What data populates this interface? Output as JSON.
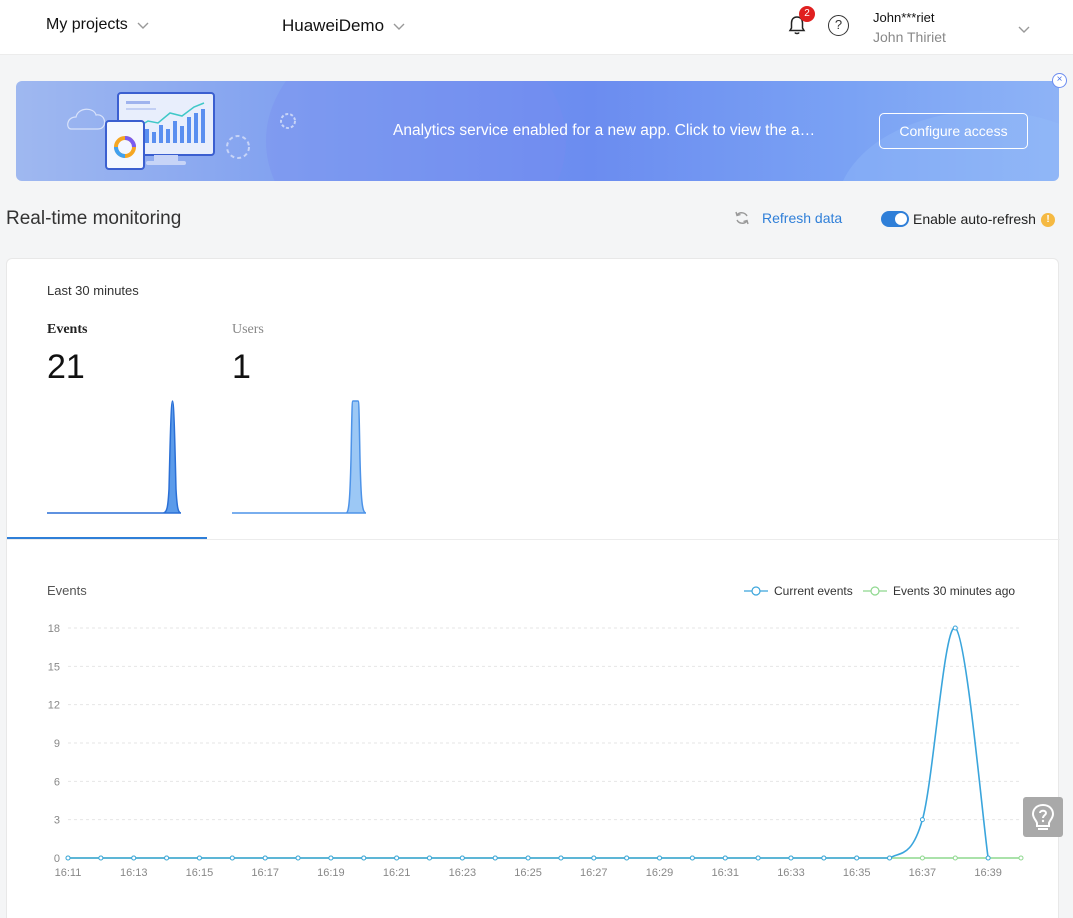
{
  "header": {
    "projects_label": "My projects",
    "app_label": "HuaweiDemo",
    "notification_count": "2",
    "help_glyph": "?",
    "user_masked": "John***riet",
    "user_name": "John Thiriet"
  },
  "banner": {
    "message": "Analytics service enabled for a new app. Click to view the a…",
    "button_label": "Configure access",
    "close_glyph": "×"
  },
  "section": {
    "title": "Real-time monitoring",
    "refresh_label": "Refresh data",
    "auto_refresh_label": "Enable auto-refresh",
    "auto_refresh_enabled": true,
    "warning_glyph": "!"
  },
  "metrics": {
    "period": "Last 30 minutes",
    "tabs": [
      {
        "label": "Events",
        "value": "21",
        "selected": true
      },
      {
        "label": "Users",
        "value": "1",
        "selected": false
      }
    ]
  },
  "colors": {
    "accent": "#2f7fd8",
    "current_series": "#3aa5dc",
    "past_series": "#8ed88e",
    "spark_fill": "#6aa8ec"
  },
  "chart_data": {
    "type": "line",
    "ylabel": "Events",
    "ylim": [
      0,
      18
    ],
    "yticks": [
      0,
      3,
      6,
      9,
      12,
      15,
      18
    ],
    "xticks": [
      "16:11",
      "16:13",
      "16:15",
      "16:17",
      "16:19",
      "16:21",
      "16:23",
      "16:25",
      "16:27",
      "16:29",
      "16:31",
      "16:33",
      "16:35",
      "16:37",
      "16:39"
    ],
    "x": [
      "16:11",
      "16:12",
      "16:13",
      "16:14",
      "16:15",
      "16:16",
      "16:17",
      "16:18",
      "16:19",
      "16:20",
      "16:21",
      "16:22",
      "16:23",
      "16:24",
      "16:25",
      "16:26",
      "16:27",
      "16:28",
      "16:29",
      "16:30",
      "16:31",
      "16:32",
      "16:33",
      "16:34",
      "16:35",
      "16:36",
      "16:37",
      "16:38",
      "16:39",
      "16:40"
    ],
    "series": [
      {
        "name": "Current events",
        "values": [
          0,
          0,
          0,
          0,
          0,
          0,
          0,
          0,
          0,
          0,
          0,
          0,
          0,
          0,
          0,
          0,
          0,
          0,
          0,
          0,
          0,
          0,
          0,
          0,
          0,
          0,
          3,
          18,
          0,
          null
        ]
      },
      {
        "name": "Events 30 minutes ago",
        "values": [
          0,
          0,
          0,
          0,
          0,
          0,
          0,
          0,
          0,
          0,
          0,
          0,
          0,
          0,
          0,
          0,
          0,
          0,
          0,
          0,
          0,
          0,
          0,
          0,
          0,
          0,
          0,
          0,
          0,
          0
        ]
      }
    ],
    "legend_position": "top-right",
    "grid": true
  }
}
